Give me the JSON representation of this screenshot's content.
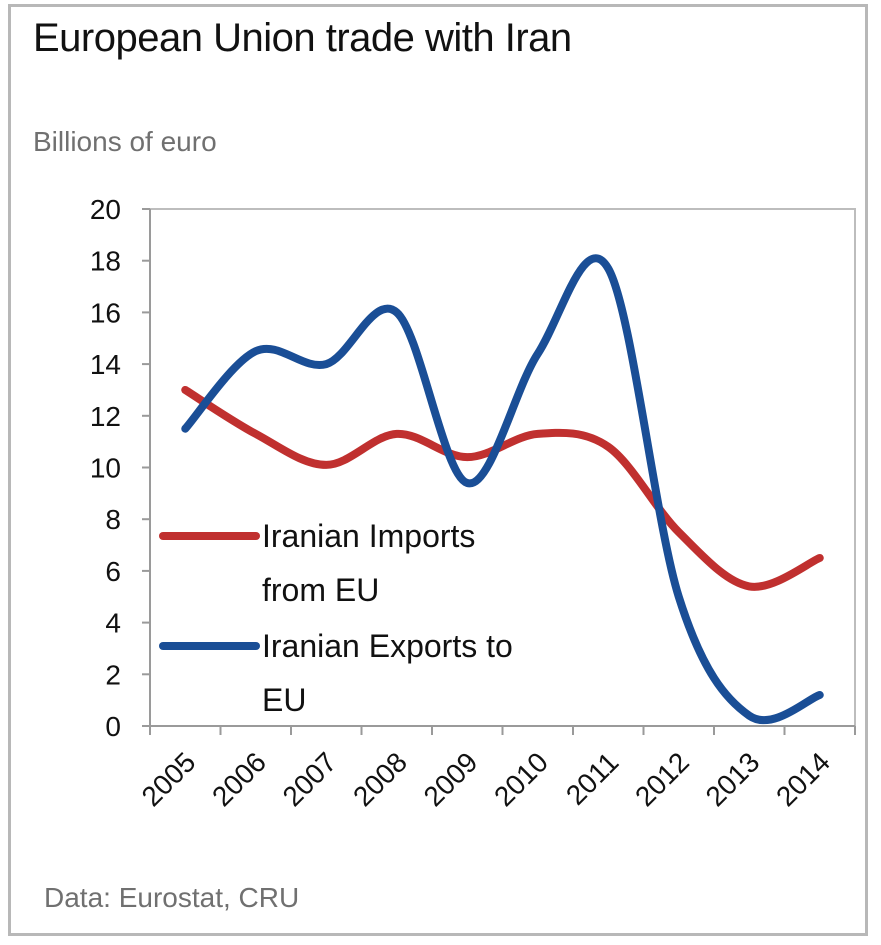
{
  "header": {
    "title": "European Union trade with Iran",
    "subtitle": "Billions of euro"
  },
  "footer": {
    "source": "Data: Eurostat, CRU"
  },
  "chart_data": {
    "type": "line",
    "title": "European Union trade with Iran",
    "ylabel": "Billions of euro",
    "xlabel": "",
    "categories": [
      "2005",
      "2006",
      "2007",
      "2008",
      "2009",
      "2010",
      "2011",
      "2012",
      "2013",
      "2014"
    ],
    "ylim": [
      0,
      20
    ],
    "yticks": [
      0,
      2,
      4,
      6,
      8,
      10,
      12,
      14,
      16,
      18,
      20
    ],
    "grid": false,
    "legend_position": "lower-left inside plot",
    "series": [
      {
        "name": "Iranian Imports from EU",
        "name_lines": [
          "Iranian Imports",
          "from EU"
        ],
        "color": "#c0302f",
        "values": [
          13.0,
          11.3,
          10.1,
          11.3,
          10.4,
          11.3,
          10.8,
          7.5,
          5.4,
          6.5
        ]
      },
      {
        "name": "Iranian Exports to EU",
        "name_lines": [
          "Iranian Exports to",
          "EU"
        ],
        "color": "#1a4e96",
        "values": [
          11.5,
          14.5,
          14.0,
          16.0,
          9.4,
          14.4,
          17.7,
          5.0,
          0.4,
          1.2
        ]
      }
    ]
  }
}
